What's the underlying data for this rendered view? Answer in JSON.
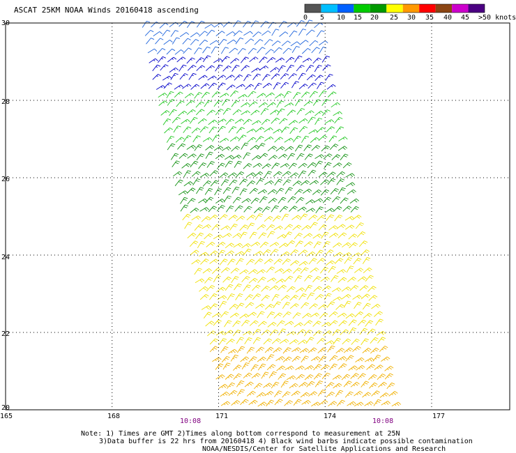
{
  "title": "ASCAT 25KM NOAA Winds 20160418 ascending",
  "legend": {
    "labels": [
      "0",
      "5",
      "10",
      "15",
      "20",
      "25",
      "30",
      "35",
      "40",
      "45",
      ">50 knots"
    ],
    "colors": [
      "#555555",
      "#00bfff",
      "#0060ff",
      "#00cc00",
      "#009900",
      "#ffff00",
      "#ff9900",
      "#ff0000",
      "#8b4513",
      "#cc00cc",
      "#4b0082"
    ]
  },
  "axes": {
    "x_ticks": [
      "165",
      "168",
      "171",
      "174",
      "177"
    ],
    "y_ticks": [
      "30",
      "28",
      "26",
      "24",
      "22",
      "20"
    ],
    "xlim": [
      165,
      179.2
    ],
    "ylim": [
      20,
      30
    ]
  },
  "times": [
    "10:08",
    "10:08"
  ],
  "notes": {
    "line1": "Note: 1) Times are GMT 2)Times along bottom correspond to measurement at 25N",
    "line2": "3)Data buffer is 22 hrs from 20160418 4) Black wind barbs indicate possible contamination",
    "line3": "NOAA/NESDIS/Center for Satellite Applications and Research"
  },
  "chart_data": {
    "type": "scatter",
    "description_fields": "wind barbs in swath",
    "swath": {
      "lat_top": 30,
      "lat_bottom": 20,
      "lon_left_top": 168.7,
      "lon_right_top": 173.8,
      "lon_left_bottom": 171.0,
      "lon_right_bottom": 176.0
    },
    "speed_bands": [
      {
        "lat_min": 29.0,
        "lat_max": 30.0,
        "speed_knots": 12,
        "color": "#1e64dc"
      },
      {
        "lat_min": 28.2,
        "lat_max": 29.0,
        "speed_knots": 15,
        "color": "#0000c8"
      },
      {
        "lat_min": 26.8,
        "lat_max": 28.2,
        "speed_knots": 18,
        "color": "#22c822"
      },
      {
        "lat_min": 25.0,
        "lat_max": 26.8,
        "speed_knots": 20,
        "color": "#109010"
      },
      {
        "lat_min": 21.5,
        "lat_max": 25.0,
        "speed_knots": 22,
        "color": "#f0e000"
      },
      {
        "lat_min": 20.0,
        "lat_max": 21.5,
        "speed_knots": 25,
        "color": "#f0b000"
      }
    ],
    "wind_direction": "from northeast",
    "grid": true
  }
}
